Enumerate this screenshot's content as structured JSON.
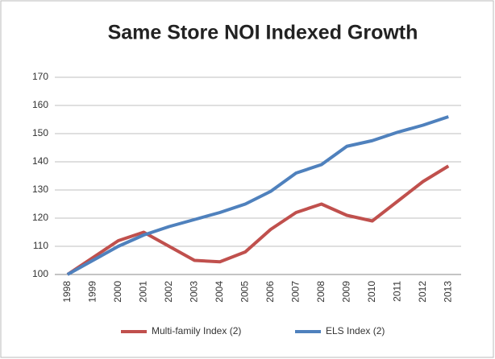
{
  "chart_data": {
    "type": "line",
    "title": "Same Store NOI Indexed Growth",
    "categories": [
      "1998",
      "1999",
      "2000",
      "2001",
      "2002",
      "2003",
      "2004",
      "2005",
      "2006",
      "2007",
      "2008",
      "2009",
      "2010",
      "2011",
      "2012",
      "2013"
    ],
    "series": [
      {
        "name": "Multi-family Index (2)",
        "color": "#c0504d",
        "values": [
          100,
          106,
          112,
          115,
          110,
          105,
          104.5,
          108,
          116,
          122,
          125,
          121,
          119,
          126,
          133,
          138.5
        ]
      },
      {
        "name": "ELS Index (2)",
        "color": "#4f81bd",
        "values": [
          100,
          105,
          110,
          114,
          117,
          119.5,
          122,
          125,
          129.5,
          136,
          139,
          145.5,
          147.5,
          150.5,
          153,
          156
        ]
      }
    ],
    "ylim": [
      100,
      170
    ],
    "yticks": [
      100,
      110,
      120,
      130,
      140,
      150,
      160,
      170
    ],
    "grid": true,
    "legend": "bottom"
  }
}
